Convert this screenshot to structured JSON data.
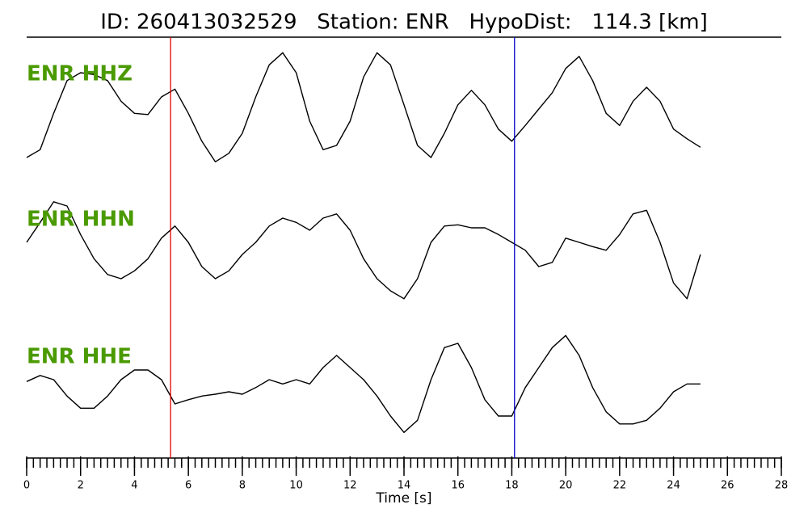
{
  "chart_data": {
    "type": "line",
    "title": "ID: 260413032529   Station: ENR   HypoDist:   114.3 [km]",
    "xlabel": "Time [s]",
    "xlim": [
      0,
      28
    ],
    "xticks": [
      0,
      2,
      4,
      6,
      8,
      10,
      12,
      14,
      16,
      18,
      20,
      22,
      24,
      26,
      28
    ],
    "xminor_step": 0.25,
    "ylim": [
      -1,
      1
    ],
    "label_color": "#4a9a00",
    "markers": [
      {
        "x": 5.34,
        "color": "#e00000"
      },
      {
        "x": 18.1,
        "color": "#0000cc"
      }
    ],
    "x": [
      0,
      0.5,
      1,
      1.5,
      2,
      2.5,
      3,
      3.5,
      4,
      4.5,
      5,
      5.5,
      6,
      6.5,
      7,
      7.5,
      8,
      8.5,
      9,
      9.5,
      10,
      10.5,
      11,
      11.5,
      12,
      12.5,
      13,
      13.5,
      14,
      14.5,
      15,
      15.5,
      16,
      16.5,
      17,
      17.5,
      18,
      18.5,
      19,
      19.5,
      20,
      20.5,
      21,
      21.5,
      22,
      22.5,
      23,
      23.5,
      24,
      24.5,
      25
    ],
    "series": [
      {
        "name": "ENR HHZ",
        "color": "#000000",
        "values": [
          -0.8,
          -0.67,
          -0.07,
          0.47,
          0.6,
          0.57,
          0.47,
          0.13,
          -0.07,
          -0.09,
          0.2,
          0.33,
          -0.07,
          -0.53,
          -0.87,
          -0.73,
          -0.4,
          0.2,
          0.73,
          0.93,
          0.6,
          -0.2,
          -0.67,
          -0.6,
          -0.2,
          0.53,
          0.93,
          0.73,
          0.07,
          -0.6,
          -0.8,
          -0.4,
          0.07,
          0.31,
          0.07,
          -0.33,
          -0.53,
          -0.27,
          0,
          0.27,
          0.67,
          0.87,
          0.47,
          -0.07,
          -0.27,
          0.13,
          0.36,
          0.13,
          -0.33,
          -0.49,
          -0.63
        ]
      },
      {
        "name": "ENR HHN",
        "color": "#000000",
        "values": [
          0.2,
          0.53,
          0.87,
          0.8,
          0.33,
          -0.07,
          -0.33,
          -0.4,
          -0.27,
          -0.07,
          0.27,
          0.47,
          0.2,
          -0.2,
          -0.4,
          -0.27,
          0,
          0.2,
          0.47,
          0.6,
          0.53,
          0.4,
          0.6,
          0.67,
          0.4,
          -0.07,
          -0.4,
          -0.6,
          -0.73,
          -0.4,
          0.2,
          0.47,
          0.49,
          0.44,
          0.44,
          0.33,
          0.2,
          0.07,
          -0.2,
          -0.13,
          0.27,
          0.2,
          0.13,
          0.07,
          0.33,
          0.67,
          0.73,
          0.2,
          -0.47,
          -0.73,
          0
        ]
      },
      {
        "name": "ENR HHE",
        "color": "#000000",
        "values": [
          0.17,
          0.27,
          0.2,
          -0.07,
          -0.27,
          -0.27,
          -0.07,
          0.2,
          0.36,
          0.36,
          0.2,
          -0.2,
          -0.13,
          -0.07,
          -0.04,
          0,
          -0.04,
          0.07,
          0.2,
          0.13,
          0.2,
          0.13,
          0.4,
          0.6,
          0.4,
          0.2,
          -0.07,
          -0.4,
          -0.67,
          -0.47,
          0.2,
          0.73,
          0.8,
          0.4,
          -0.13,
          -0.4,
          -0.4,
          0.07,
          0.4,
          0.73,
          0.93,
          0.6,
          0.07,
          -0.33,
          -0.53,
          -0.53,
          -0.47,
          -0.27,
          0,
          0.13,
          0.13
        ]
      }
    ]
  }
}
